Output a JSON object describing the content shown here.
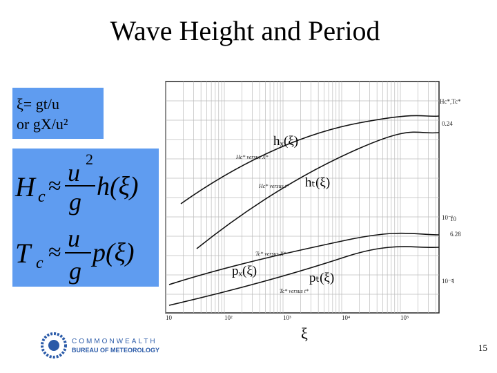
{
  "header": {
    "title": "Wave Height and Period"
  },
  "definition": {
    "line1": "ξ= gt/u",
    "line2": "or gX/u²"
  },
  "formulas": [
    {
      "lhs": "H",
      "lhs_sub": "c",
      "approx": "≈",
      "num": "u",
      "num_sup": "2",
      "den": "g",
      "fn": "h(ξ)"
    },
    {
      "lhs": "T",
      "lhs_sub": "c",
      "approx": "≈",
      "num": "u",
      "den": "g",
      "fn": "p(ξ)"
    }
  ],
  "figure": {
    "curve_labels": [
      "hₓ(ξ)",
      "hₜ(ξ)",
      "pₓ(ξ)",
      "pₜ(ξ)"
    ],
    "scan_labels": [
      "Hc* versus X*",
      "Hc* versus t*",
      "Tc* versus X*",
      "Tc* versus t*"
    ],
    "x_ticks": [
      "10",
      "10²",
      "10³",
      "10⁴",
      "10⁵"
    ],
    "right_ticks": [
      "0.24",
      "10⁻¹",
      "6.28",
      "10",
      "10⁻²",
      "1"
    ],
    "top_right": "Hc*,Tc*",
    "x_label": "ξ"
  },
  "footer": {
    "logo_line1": "COMMONWEALTH",
    "logo_line2": "BUREAU OF METEOROLOGY",
    "page": "15"
  }
}
